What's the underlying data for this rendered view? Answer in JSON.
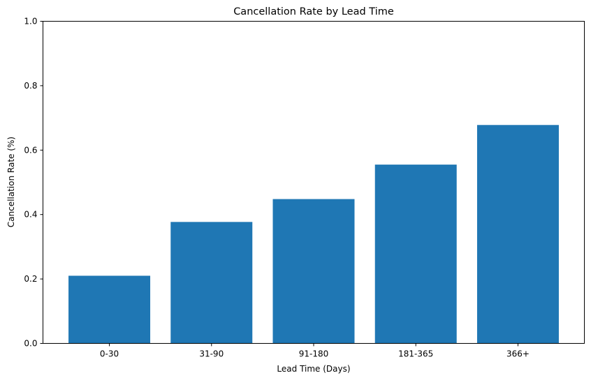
{
  "chart_data": {
    "type": "bar",
    "title": "Cancellation Rate by Lead Time",
    "xlabel": "Lead Time (Days)",
    "ylabel": "Cancellation Rate (%)",
    "categories": [
      "0-30",
      "31-90",
      "91-180",
      "181-365",
      "366+"
    ],
    "values": [
      0.21,
      0.377,
      0.448,
      0.555,
      0.678
    ],
    "ylim": [
      0,
      1.0
    ],
    "yticks": [
      "0.0",
      "0.2",
      "0.4",
      "0.6",
      "0.8",
      "1.0"
    ],
    "grid": false,
    "legend": "none",
    "bar_color": "#1f77b4"
  }
}
